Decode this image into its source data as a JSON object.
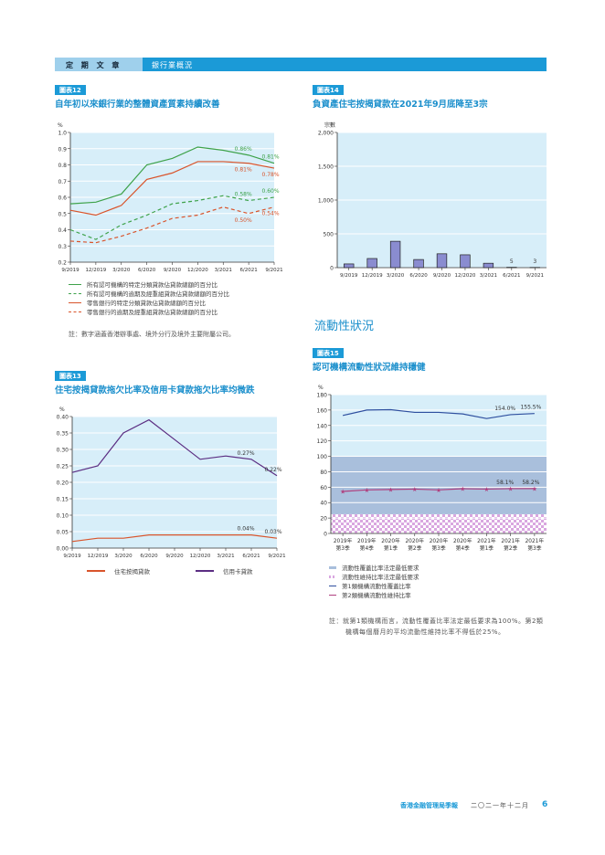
{
  "header": {
    "section": "定 期 文 章",
    "topic": "銀行業概況"
  },
  "chart12": {
    "tag": "圖表12",
    "title": "自年初以來銀行業的整體資產質素持續改善"
  },
  "chart13": {
    "tag": "圖表13",
    "title": "住宅按揭貸款拖欠比率及信用卡貸款拖欠比率均微跌"
  },
  "chart14": {
    "tag": "圖表14",
    "title": "負資產住宅按揭貸款在2021年9月底降至3宗"
  },
  "section_heading": "流動性狀況",
  "chart15": {
    "tag": "圖表15",
    "title": "認可機構流動性狀況維持穩健"
  },
  "footer": {
    "publication": "香港金融管理局季報",
    "date": "二〇二一年十二月",
    "page": "6"
  },
  "colors": {
    "accent": "#1b9ad7",
    "plot_bg": "#d7eef9",
    "green": "#3ea24a",
    "red": "#d9542b",
    "purple": "#5b2d82",
    "blue": "#2e4f9f",
    "magenta": "#b0407f",
    "lcr_band": "#a9bfdc",
    "bar": "#8a8cd0"
  },
  "chart_data": [
    {
      "type": "line",
      "ylabel": "%",
      "ylim": [
        0.2,
        1.0
      ],
      "yticks": [
        "0.2",
        "0.3",
        "0.4",
        "0.5",
        "0.6",
        "0.7",
        "0.8",
        "0.9",
        "1.0"
      ],
      "categories": [
        "9/2019",
        "12/2019",
        "3/2020",
        "6/2020",
        "9/2020",
        "12/2020",
        "3/2021",
        "6/2021",
        "9/2021"
      ],
      "series": [
        {
          "name": "所有認可機構的特定分類貸款佔貸款總額的百分比",
          "color": "#3ea24a",
          "dash": false,
          "values": [
            0.56,
            0.57,
            0.62,
            0.8,
            0.84,
            0.91,
            0.89,
            0.86,
            0.81
          ],
          "labels": {
            "7": "0.86%",
            "8": "0.81%"
          },
          "label_pos": "above"
        },
        {
          "name": "所有認可機構的逾期及經重組貸款佔貸款總額的百分比",
          "color": "#3ea24a",
          "dash": true,
          "values": [
            0.4,
            0.34,
            0.43,
            0.49,
            0.56,
            0.58,
            0.61,
            0.58,
            0.6
          ],
          "labels": {
            "7": "0.58%",
            "8": "0.60%"
          },
          "label_pos": "above"
        },
        {
          "name": "零售銀行的特定分類貸款佔貸款總額的百分比",
          "color": "#d9542b",
          "dash": false,
          "values": [
            0.52,
            0.49,
            0.55,
            0.71,
            0.75,
            0.82,
            0.82,
            0.81,
            0.78
          ],
          "labels": {
            "7": "0.81%",
            "8": "0.78%"
          },
          "label_pos": "below"
        },
        {
          "name": "零售銀行的逾期及經重組貸款佔貸款總額的百分比",
          "color": "#d9542b",
          "dash": true,
          "values": [
            0.33,
            0.32,
            0.36,
            0.41,
            0.47,
            0.49,
            0.54,
            0.5,
            0.54
          ],
          "labels": {
            "7": "0.50%",
            "8": "0.54%"
          },
          "label_pos": "below"
        }
      ],
      "legend": "bottom",
      "grid": true,
      "note": "註：數字涵蓋香港辦事處、境外分行及境外主要附屬公司。"
    },
    {
      "type": "line",
      "ylabel": "%",
      "ylim": [
        0,
        0.4
      ],
      "yticks": [
        "0.00",
        "0.05",
        "0.10",
        "0.15",
        "0.20",
        "0.25",
        "0.30",
        "0.35",
        "0.40"
      ],
      "categories": [
        "9/2019",
        "12/2019",
        "3/2020",
        "6/2020",
        "9/2020",
        "12/2020",
        "3/2021",
        "6/2021",
        "9/2021"
      ],
      "series": [
        {
          "name": "住宅按揭貸款",
          "color": "#d9542b",
          "values": [
            0.02,
            0.03,
            0.03,
            0.04,
            0.04,
            0.04,
            0.04,
            0.04,
            0.03
          ],
          "labels": {
            "7": "0.04%",
            "8": "0.03%"
          },
          "label_pos": "above"
        },
        {
          "name": "信用卡貸款",
          "color": "#5b2d82",
          "values": [
            0.23,
            0.25,
            0.35,
            0.39,
            0.33,
            0.27,
            0.28,
            0.27,
            0.22
          ],
          "labels": {
            "7": "0.27%",
            "8": "0.22%"
          },
          "label_pos": "above"
        }
      ],
      "legend": "bottom",
      "grid": true
    },
    {
      "type": "bar",
      "ylabel": "宗數",
      "ylim": [
        0,
        2000
      ],
      "yticks": [
        "0",
        "500",
        "1,000",
        "1,500",
        "2,000"
      ],
      "categories": [
        "9/2019",
        "12/2019",
        "3/2020",
        "6/2020",
        "9/2020",
        "12/2020",
        "3/2021",
        "6/2021",
        "9/2021"
      ],
      "values": [
        55,
        135,
        390,
        120,
        205,
        190,
        65,
        5,
        3
      ],
      "data_labels": {
        "7": "5",
        "8": "3"
      },
      "grid": true
    },
    {
      "type": "line",
      "ylabel": "%",
      "ylim": [
        0,
        180
      ],
      "yticks": [
        "0",
        "20",
        "40",
        "60",
        "80",
        "100",
        "120",
        "140",
        "160",
        "180"
      ],
      "categories": [
        [
          "2019年",
          "第3季"
        ],
        [
          "2019年",
          "第4季"
        ],
        [
          "2020年",
          "第1季"
        ],
        [
          "2020年",
          "第2季"
        ],
        [
          "2020年",
          "第3季"
        ],
        [
          "2020年",
          "第4季"
        ],
        [
          "2021年",
          "第1季"
        ],
        [
          "2021年",
          "第2季"
        ],
        [
          "2021年",
          "第3季"
        ]
      ],
      "bands": [
        {
          "name": "流動性覆蓋比率法定最低要求",
          "value": 100,
          "color": "#a9bfdc",
          "pattern": "solid"
        },
        {
          "name": "流動性維持比率法定最低要求",
          "value": 25,
          "color": "#d9a6e0",
          "pattern": "checker"
        }
      ],
      "series": [
        {
          "name": "第1類機構流動性覆蓋比率",
          "color": "#2e4f9f",
          "values": [
            153,
            160,
            160.5,
            157,
            157,
            155,
            149,
            154,
            155.5
          ],
          "labels": {
            "7": "154.0%",
            "8": "155.5%"
          },
          "label_pos": "above"
        },
        {
          "name": "第2類機構流動性維持比率",
          "color": "#b0407f",
          "marker": "star",
          "values": [
            54.5,
            56.5,
            57,
            57.5,
            56.5,
            58,
            57.5,
            58.1,
            58.2
          ],
          "labels": {
            "7": "58.1%",
            "8": "58.2%"
          },
          "label_pos": "above"
        }
      ],
      "legend": "bottom",
      "grid": true,
      "note": "註：就第1類機構而言，流動性覆蓋比率法定最低要求為100%。第2類機構每個曆月的平均流動性維持比率不得低於25%。"
    }
  ]
}
